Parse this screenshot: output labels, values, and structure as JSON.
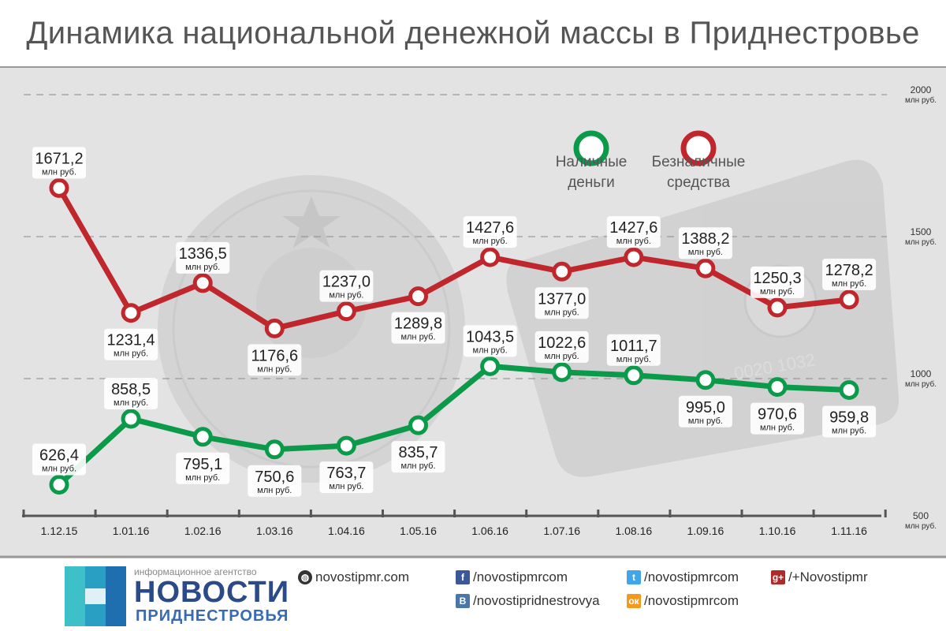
{
  "title": "Динамика национальной денежной массы в Приднестровье",
  "chart_data": {
    "type": "line",
    "categories": [
      "1.12.15",
      "1.01.16",
      "1.02.16",
      "1.03.16",
      "1.04.16",
      "1.05.16",
      "1.06.16",
      "1.07.16",
      "1.08.16",
      "1.09.16",
      "1.10.16",
      "1.11.16"
    ],
    "series": [
      {
        "name": "Наличные деньги",
        "color": "#0a9a4a",
        "values": [
          626.4,
          858.5,
          795.1,
          750.6,
          763.7,
          835.7,
          1043.5,
          1022.6,
          1011.7,
          995.0,
          970.6,
          959.8
        ],
        "labels": [
          "626,4",
          "858,5",
          "795,1",
          "750,6",
          "763,7",
          "835,7",
          "1043,5",
          "1022,6",
          "1011,7",
          "995,0",
          "970,6",
          "959,8"
        ]
      },
      {
        "name": "Безналичные средства",
        "color": "#c0272d",
        "values": [
          1671.2,
          1231.4,
          1336.5,
          1176.6,
          1237.0,
          1289.8,
          1427.6,
          1377.0,
          1427.6,
          1388.2,
          1250.3,
          1278.2
        ],
        "labels": [
          "1671,2",
          "1231,4",
          "1336,5",
          "1176,6",
          "1237,0",
          "1289,8",
          "1427,6",
          "1377,0",
          "1427,6",
          "1388,2",
          "1250,3",
          "1278,2"
        ]
      }
    ],
    "unit_label": "млн руб.",
    "yticks": [
      "2000",
      "1500",
      "1000",
      "500"
    ],
    "ylim": [
      500,
      2000
    ],
    "grid": true,
    "legend": [
      {
        "line1": "Наличные",
        "line2": "деньги"
      },
      {
        "line1": "Безналичные",
        "line2": "средства"
      }
    ],
    "legend_position": "top-right"
  },
  "footer": {
    "agency_small": "информационное агентство",
    "brand_main": "НОВОСТИ",
    "brand_sub": "ПРИДНЕСТРОВЬЯ",
    "site": "novostipmr.com",
    "facebook": "/novostipmrcom",
    "twitter": "/novostipmrcom",
    "gplus": "/+Novostipmr",
    "vk": "/novostipridnestrovya",
    "ok": "/novostipmrcom"
  },
  "icons": {
    "site": "globe-icon",
    "facebook": "facebook-icon",
    "twitter": "twitter-icon",
    "gplus": "google-plus-icon",
    "vk": "vk-icon",
    "ok": "odnoklassniki-icon"
  }
}
